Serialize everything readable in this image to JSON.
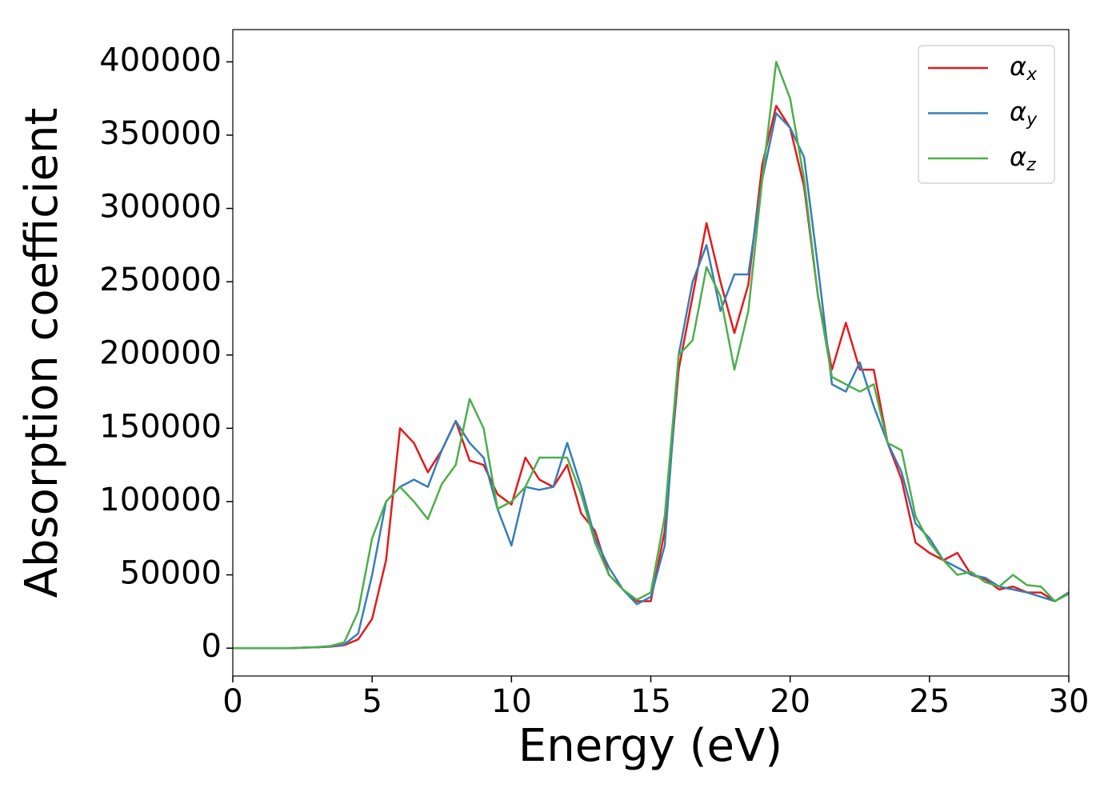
{
  "chart_data": {
    "type": "line",
    "xlabel": "Energy (eV)",
    "ylabel": "Absorption coefficient",
    "x": [
      0,
      0.5,
      1,
      1.5,
      2,
      2.5,
      3,
      3.5,
      4,
      4.5,
      5,
      5.5,
      6,
      6.5,
      7,
      7.5,
      8,
      8.5,
      9,
      9.5,
      10,
      10.5,
      11,
      11.5,
      12,
      12.5,
      13,
      13.5,
      14,
      14.5,
      15,
      15.5,
      16,
      16.5,
      17,
      17.5,
      18,
      18.5,
      19,
      19.5,
      20,
      20.5,
      21,
      21.5,
      22,
      22.5,
      23,
      23.5,
      24,
      24.5,
      25,
      25.5,
      26,
      26.5,
      27,
      27.5,
      28,
      28.5,
      29,
      29.5,
      30
    ],
    "series": [
      {
        "name": "αx",
        "color": "#e41a1c",
        "values": [
          0,
          0,
          0,
          0,
          0,
          300,
          600,
          1000,
          2000,
          6000,
          20000,
          60000,
          150000,
          140000,
          120000,
          135000,
          155000,
          128000,
          125000,
          105000,
          98000,
          130000,
          115000,
          110000,
          125000,
          92000,
          80000,
          50000,
          40000,
          32000,
          32000,
          80000,
          190000,
          240000,
          290000,
          250000,
          215000,
          248000,
          330000,
          370000,
          355000,
          315000,
          240000,
          190000,
          222000,
          190000,
          190000,
          140000,
          115000,
          72000,
          65000,
          60000,
          65000,
          50000,
          47000,
          40000,
          42000,
          38000,
          38000,
          32000,
          38000
        ]
      },
      {
        "name": "αy",
        "color": "#377eb8",
        "values": [
          0,
          0,
          0,
          0,
          0,
          300,
          600,
          1200,
          2500,
          10000,
          50000,
          100000,
          110000,
          115000,
          110000,
          135000,
          155000,
          140000,
          130000,
          95000,
          70000,
          110000,
          108000,
          110000,
          140000,
          110000,
          75000,
          55000,
          40000,
          30000,
          35000,
          70000,
          200000,
          250000,
          275000,
          230000,
          255000,
          255000,
          320000,
          365000,
          355000,
          335000,
          260000,
          180000,
          175000,
          195000,
          165000,
          140000,
          120000,
          85000,
          75000,
          60000,
          55000,
          50000,
          48000,
          42000,
          40000,
          38000,
          35000,
          32000,
          38000
        ]
      },
      {
        "name": "αz",
        "color": "#4daf4a",
        "values": [
          0,
          0,
          0,
          0,
          0,
          300,
          700,
          1500,
          4000,
          25000,
          75000,
          100000,
          110000,
          100000,
          88000,
          112000,
          125000,
          170000,
          150000,
          95000,
          100000,
          110000,
          130000,
          130000,
          130000,
          105000,
          72000,
          50000,
          40000,
          33000,
          38000,
          90000,
          200000,
          210000,
          260000,
          240000,
          190000,
          230000,
          320000,
          400000,
          375000,
          320000,
          240000,
          185000,
          180000,
          175000,
          180000,
          140000,
          135000,
          90000,
          72000,
          60000,
          50000,
          52000,
          45000,
          42000,
          50000,
          43000,
          42000,
          32000,
          37000
        ]
      }
    ],
    "xlim": [
      0,
      30
    ],
    "xticks": [
      0,
      5,
      10,
      15,
      20,
      25,
      30
    ],
    "ylim": [
      -19000,
      422000
    ],
    "yticks": [
      0,
      50000,
      100000,
      150000,
      200000,
      250000,
      300000,
      350000,
      400000
    ],
    "legend": "upper right"
  }
}
